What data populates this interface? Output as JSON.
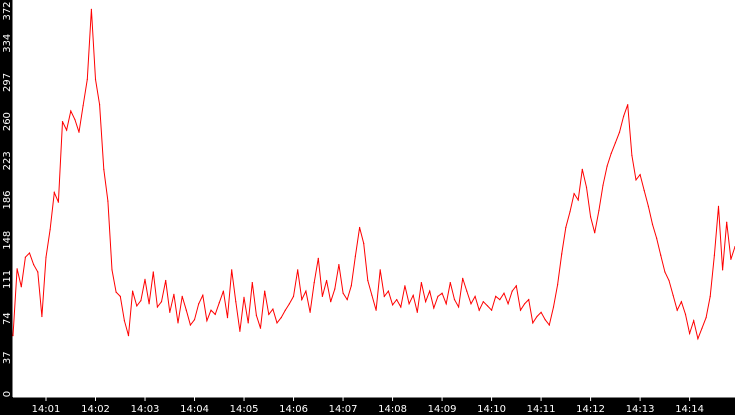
{
  "chart_data": {
    "type": "line",
    "title": "",
    "xlabel": "",
    "ylabel": "",
    "ylim": [
      0,
      372
    ],
    "xlim": [
      "14:00:20",
      "14:14:55"
    ],
    "grid": false,
    "legend": "none",
    "colors": {
      "background": "#000000",
      "plot_area": "#ffffff",
      "line": "#ff0000",
      "axis": "#ffffff",
      "tick_text": "#ffffff"
    },
    "y_ticks": [
      "0",
      "37",
      "74",
      "111",
      "148",
      "186",
      "223",
      "260",
      "297",
      "334",
      "372"
    ],
    "x_ticks": [
      "14:01",
      "14:02",
      "14:03",
      "14:04",
      "14:05",
      "14:06",
      "14:07",
      "14:08",
      "14:09",
      "14:10",
      "14:11",
      "14:12",
      "14:13",
      "14:14"
    ],
    "series": [
      {
        "points": [
          [
            "14:00:20",
            58
          ],
          [
            "14:00:25",
            121
          ],
          [
            "14:00:30",
            104
          ],
          [
            "14:00:35",
            132
          ],
          [
            "14:00:40",
            136
          ],
          [
            "14:00:45",
            125
          ],
          [
            "14:00:50",
            118
          ],
          [
            "14:00:55",
            76
          ],
          [
            "14:01:00",
            132
          ],
          [
            "14:01:05",
            158
          ],
          [
            "14:01:10",
            193
          ],
          [
            "14:01:15",
            184
          ],
          [
            "14:01:20",
            260
          ],
          [
            "14:01:25",
            252
          ],
          [
            "14:01:30",
            270
          ],
          [
            "14:01:35",
            262
          ],
          [
            "14:01:40",
            250
          ],
          [
            "14:01:45",
            275
          ],
          [
            "14:01:50",
            300
          ],
          [
            "14:01:55",
            366
          ],
          [
            "14:02:00",
            300
          ],
          [
            "14:02:05",
            276
          ],
          [
            "14:02:10",
            215
          ],
          [
            "14:02:15",
            185
          ],
          [
            "14:02:20",
            120
          ],
          [
            "14:02:25",
            99
          ],
          [
            "14:02:30",
            95
          ],
          [
            "14:02:35",
            72
          ],
          [
            "14:02:40",
            58
          ],
          [
            "14:02:45",
            100
          ],
          [
            "14:02:50",
            86
          ],
          [
            "14:02:55",
            91
          ],
          [
            "14:03:00",
            111
          ],
          [
            "14:03:05",
            88
          ],
          [
            "14:03:10",
            118
          ],
          [
            "14:03:15",
            85
          ],
          [
            "14:03:20",
            90
          ],
          [
            "14:03:25",
            110
          ],
          [
            "14:03:30",
            80
          ],
          [
            "14:03:35",
            97
          ],
          [
            "14:03:40",
            70
          ],
          [
            "14:03:45",
            95
          ],
          [
            "14:03:50",
            82
          ],
          [
            "14:03:55",
            68
          ],
          [
            "14:04:00",
            73
          ],
          [
            "14:04:05",
            88
          ],
          [
            "14:04:10",
            96
          ],
          [
            "14:04:15",
            72
          ],
          [
            "14:04:20",
            82
          ],
          [
            "14:04:25",
            78
          ],
          [
            "14:04:30",
            89
          ],
          [
            "14:04:35",
            100
          ],
          [
            "14:04:40",
            75
          ],
          [
            "14:04:45",
            120
          ],
          [
            "14:04:50",
            90
          ],
          [
            "14:04:55",
            62
          ],
          [
            "14:05:00",
            94
          ],
          [
            "14:05:05",
            70
          ],
          [
            "14:05:10",
            108
          ],
          [
            "14:05:15",
            77
          ],
          [
            "14:05:20",
            65
          ],
          [
            "14:05:25",
            100
          ],
          [
            "14:05:30",
            78
          ],
          [
            "14:05:35",
            83
          ],
          [
            "14:05:40",
            70
          ],
          [
            "14:05:45",
            75
          ],
          [
            "14:05:50",
            82
          ],
          [
            "14:05:55",
            88
          ],
          [
            "14:06:00",
            95
          ],
          [
            "14:06:05",
            120
          ],
          [
            "14:06:10",
            92
          ],
          [
            "14:06:15",
            100
          ],
          [
            "14:06:20",
            80
          ],
          [
            "14:06:25",
            108
          ],
          [
            "14:06:30",
            131
          ],
          [
            "14:06:35",
            95
          ],
          [
            "14:06:40",
            110
          ],
          [
            "14:06:45",
            90
          ],
          [
            "14:06:50",
            102
          ],
          [
            "14:06:55",
            125
          ],
          [
            "14:07:00",
            98
          ],
          [
            "14:07:05",
            92
          ],
          [
            "14:07:10",
            105
          ],
          [
            "14:07:15",
            133
          ],
          [
            "14:07:20",
            160
          ],
          [
            "14:07:25",
            145
          ],
          [
            "14:07:30",
            110
          ],
          [
            "14:07:35",
            96
          ],
          [
            "14:07:40",
            82
          ],
          [
            "14:07:45",
            120
          ],
          [
            "14:07:50",
            95
          ],
          [
            "14:07:55",
            100
          ],
          [
            "14:08:00",
            87
          ],
          [
            "14:08:05",
            92
          ],
          [
            "14:08:10",
            85
          ],
          [
            "14:08:15",
            105
          ],
          [
            "14:08:20",
            88
          ],
          [
            "14:08:25",
            96
          ],
          [
            "14:08:30",
            80
          ],
          [
            "14:08:35",
            108
          ],
          [
            "14:08:40",
            90
          ],
          [
            "14:08:45",
            100
          ],
          [
            "14:08:50",
            84
          ],
          [
            "14:08:55",
            95
          ],
          [
            "14:09:00",
            98
          ],
          [
            "14:09:05",
            88
          ],
          [
            "14:09:10",
            108
          ],
          [
            "14:09:15",
            92
          ],
          [
            "14:09:20",
            85
          ],
          [
            "14:09:25",
            112
          ],
          [
            "14:09:30",
            100
          ],
          [
            "14:09:35",
            88
          ],
          [
            "14:09:40",
            95
          ],
          [
            "14:09:45",
            82
          ],
          [
            "14:09:50",
            90
          ],
          [
            "14:09:55",
            86
          ],
          [
            "14:10:00",
            82
          ],
          [
            "14:10:05",
            95
          ],
          [
            "14:10:10",
            92
          ],
          [
            "14:10:15",
            98
          ],
          [
            "14:10:20",
            88
          ],
          [
            "14:10:25",
            100
          ],
          [
            "14:10:30",
            105
          ],
          [
            "14:10:35",
            82
          ],
          [
            "14:10:40",
            88
          ],
          [
            "14:10:45",
            92
          ],
          [
            "14:10:50",
            70
          ],
          [
            "14:10:55",
            76
          ],
          [
            "14:11:00",
            80
          ],
          [
            "14:11:05",
            73
          ],
          [
            "14:11:10",
            68
          ],
          [
            "14:11:15",
            85
          ],
          [
            "14:11:20",
            106
          ],
          [
            "14:11:25",
            135
          ],
          [
            "14:11:30",
            160
          ],
          [
            "14:11:35",
            175
          ],
          [
            "14:11:40",
            192
          ],
          [
            "14:11:45",
            186
          ],
          [
            "14:11:50",
            215
          ],
          [
            "14:11:55",
            198
          ],
          [
            "14:12:00",
            170
          ],
          [
            "14:12:05",
            155
          ],
          [
            "14:12:10",
            176
          ],
          [
            "14:12:15",
            200
          ],
          [
            "14:12:20",
            218
          ],
          [
            "14:12:25",
            230
          ],
          [
            "14:12:30",
            240
          ],
          [
            "14:12:35",
            250
          ],
          [
            "14:12:40",
            265
          ],
          [
            "14:12:45",
            276
          ],
          [
            "14:12:50",
            228
          ],
          [
            "14:12:55",
            205
          ],
          [
            "14:13:00",
            210
          ],
          [
            "14:13:05",
            195
          ],
          [
            "14:13:10",
            180
          ],
          [
            "14:13:15",
            163
          ],
          [
            "14:13:20",
            150
          ],
          [
            "14:13:25",
            134
          ],
          [
            "14:13:30",
            118
          ],
          [
            "14:13:35",
            110
          ],
          [
            "14:13:40",
            96
          ],
          [
            "14:13:45",
            82
          ],
          [
            "14:13:50",
            90
          ],
          [
            "14:13:55",
            78
          ],
          [
            "14:14:00",
            60
          ],
          [
            "14:14:05",
            72
          ],
          [
            "14:14:10",
            55
          ],
          [
            "14:14:15",
            65
          ],
          [
            "14:14:20",
            75
          ],
          [
            "14:14:25",
            95
          ],
          [
            "14:14:30",
            134
          ],
          [
            "14:14:35",
            180
          ],
          [
            "14:14:40",
            120
          ],
          [
            "14:14:45",
            165
          ],
          [
            "14:14:50",
            130
          ],
          [
            "14:14:55",
            142
          ]
        ]
      }
    ]
  }
}
